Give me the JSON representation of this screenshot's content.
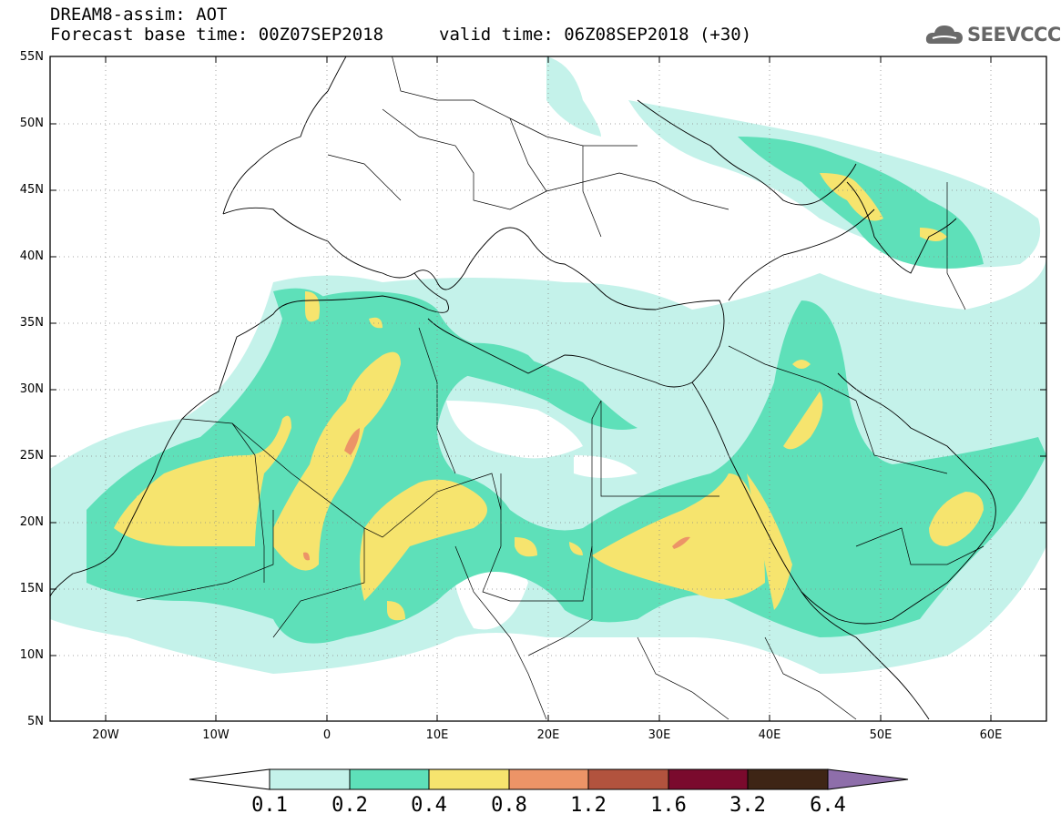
{
  "header": {
    "title": "DREAM8-assim: AOT",
    "base_time": "Forecast base time: 00Z07SEP2018",
    "valid_time": "valid time: 06Z08SEP2018 (+30)",
    "logo_text": "SEEVCCC"
  },
  "map": {
    "lat_labels": [
      "55N",
      "50N",
      "45N",
      "40N",
      "35N",
      "30N",
      "25N",
      "20N",
      "15N",
      "10N",
      "5N"
    ],
    "lon_labels": [
      "20W",
      "10W",
      "0",
      "10E",
      "20E",
      "30E",
      "40E",
      "50E",
      "60E"
    ],
    "lat_range": [
      5,
      55
    ],
    "lon_range": [
      -25,
      65
    ]
  },
  "colorbar": {
    "levels": [
      "0.1",
      "0.2",
      "0.4",
      "0.8",
      "1.2",
      "1.6",
      "3.2",
      "6.4"
    ],
    "colors": [
      "#ffffff",
      "#c4f2ea",
      "#5ee0b9",
      "#f6e46e",
      "#ec9467",
      "#b2533e",
      "#7a0a2d",
      "#3e2515",
      "#8e6eaa"
    ]
  }
}
